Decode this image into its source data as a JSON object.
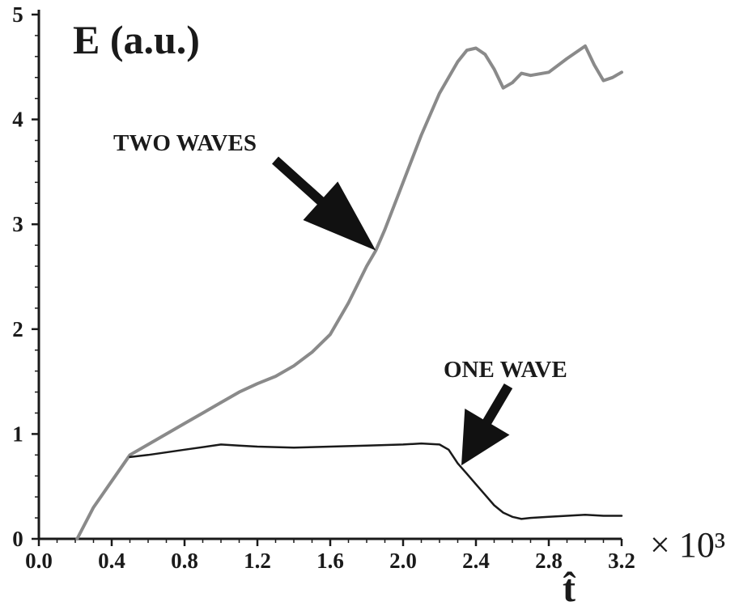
{
  "chart_data": {
    "type": "line",
    "title": "",
    "ylabel": "E (a.u.)",
    "xlabel": "t̂",
    "x_multiplier": "× 10³",
    "xlim": [
      0,
      3.2
    ],
    "ylim": [
      0,
      5
    ],
    "x_ticks": [
      "0.0",
      "0.4",
      "0.8",
      "1.2",
      "1.6",
      "2.0",
      "2.4",
      "2.8",
      "3.2"
    ],
    "y_ticks": [
      "0",
      "1",
      "2",
      "3",
      "4",
      "5"
    ],
    "grid": false,
    "legend": "none",
    "annotations": [
      {
        "text": "TWO WAVES",
        "series": "two_waves",
        "arrow_to": [
          1.85,
          2.75
        ]
      },
      {
        "text": "ONE WAVE",
        "series": "one_wave",
        "arrow_to": [
          2.32,
          0.7
        ]
      }
    ],
    "series": [
      {
        "id": "two_waves",
        "color": "#8a8a8a",
        "x": [
          0.21,
          0.3,
          0.4,
          0.5,
          0.6,
          0.7,
          0.8,
          0.9,
          1.0,
          1.1,
          1.2,
          1.3,
          1.4,
          1.5,
          1.6,
          1.7,
          1.8,
          1.85,
          1.9,
          2.0,
          2.1,
          2.2,
          2.3,
          2.35,
          2.4,
          2.45,
          2.5,
          2.55,
          2.6,
          2.65,
          2.7,
          2.8,
          2.9,
          3.0,
          3.05,
          3.1,
          3.15,
          3.2
        ],
        "y": [
          0.0,
          0.3,
          0.55,
          0.8,
          0.9,
          1.0,
          1.1,
          1.2,
          1.3,
          1.4,
          1.48,
          1.55,
          1.65,
          1.78,
          1.95,
          2.25,
          2.6,
          2.75,
          2.95,
          3.4,
          3.85,
          4.25,
          4.55,
          4.66,
          4.68,
          4.62,
          4.48,
          4.3,
          4.35,
          4.44,
          4.42,
          4.45,
          4.58,
          4.7,
          4.52,
          4.37,
          4.4,
          4.45
        ]
      },
      {
        "id": "one_wave",
        "color": "#1a1a1a",
        "x": [
          0.5,
          0.6,
          0.8,
          1.0,
          1.1,
          1.2,
          1.4,
          1.6,
          1.8,
          2.0,
          2.1,
          2.2,
          2.25,
          2.3,
          2.35,
          2.4,
          2.45,
          2.5,
          2.55,
          2.6,
          2.65,
          2.7,
          2.8,
          2.9,
          3.0,
          3.1,
          3.2
        ],
        "y": [
          0.78,
          0.8,
          0.85,
          0.9,
          0.89,
          0.88,
          0.87,
          0.88,
          0.89,
          0.9,
          0.91,
          0.9,
          0.85,
          0.72,
          0.62,
          0.52,
          0.42,
          0.32,
          0.25,
          0.21,
          0.19,
          0.2,
          0.21,
          0.22,
          0.23,
          0.22,
          0.22
        ]
      }
    ]
  }
}
